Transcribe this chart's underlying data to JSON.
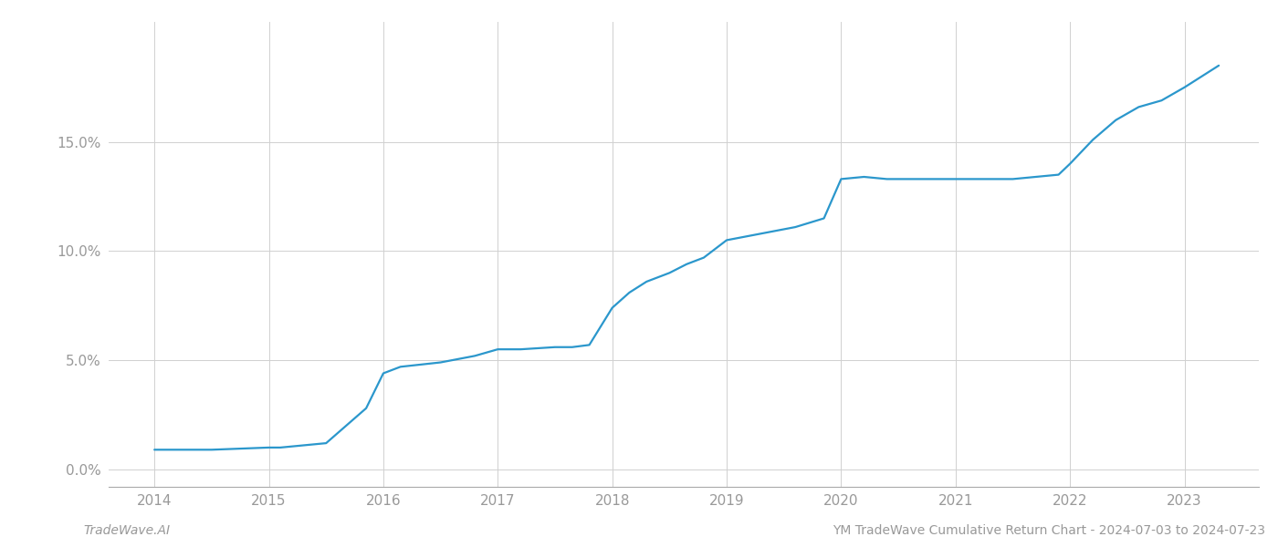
{
  "x_values": [
    2014.0,
    2014.5,
    2015.0,
    2015.1,
    2015.5,
    2015.85,
    2016.0,
    2016.15,
    2016.5,
    2016.8,
    2017.0,
    2017.2,
    2017.5,
    2017.65,
    2017.8,
    2018.0,
    2018.15,
    2018.3,
    2018.5,
    2018.65,
    2018.8,
    2019.0,
    2019.2,
    2019.4,
    2019.6,
    2019.85,
    2020.0,
    2020.2,
    2020.4,
    2020.6,
    2020.8,
    2021.0,
    2021.3,
    2021.5,
    2021.7,
    2021.9,
    2022.0,
    2022.2,
    2022.4,
    2022.6,
    2022.8,
    2023.0,
    2023.3
  ],
  "y_values": [
    0.009,
    0.009,
    0.01,
    0.01,
    0.012,
    0.028,
    0.044,
    0.047,
    0.049,
    0.052,
    0.055,
    0.055,
    0.056,
    0.056,
    0.057,
    0.074,
    0.081,
    0.086,
    0.09,
    0.094,
    0.097,
    0.105,
    0.107,
    0.109,
    0.111,
    0.115,
    0.133,
    0.134,
    0.133,
    0.133,
    0.133,
    0.133,
    0.133,
    0.133,
    0.134,
    0.135,
    0.14,
    0.151,
    0.16,
    0.166,
    0.169,
    0.175,
    0.185
  ],
  "line_color": "#2b97cc",
  "line_width": 1.6,
  "background_color": "#ffffff",
  "grid_color": "#d0d0d0",
  "x_ticks": [
    2014,
    2015,
    2016,
    2017,
    2018,
    2019,
    2020,
    2021,
    2022,
    2023
  ],
  "y_ticks": [
    0.0,
    0.05,
    0.1,
    0.15
  ],
  "y_tick_labels": [
    "0.0%",
    "5.0%",
    "10.0%",
    "15.0%"
  ],
  "xlim": [
    2013.6,
    2023.65
  ],
  "ylim": [
    -0.008,
    0.205
  ],
  "bottom_left_text": "TradeWave.AI",
  "bottom_right_text": "YM TradeWave Cumulative Return Chart - 2024-07-03 to 2024-07-23",
  "tick_color": "#999999",
  "spine_color": "#aaaaaa",
  "font_size_ticks": 11,
  "font_size_bottom": 10
}
